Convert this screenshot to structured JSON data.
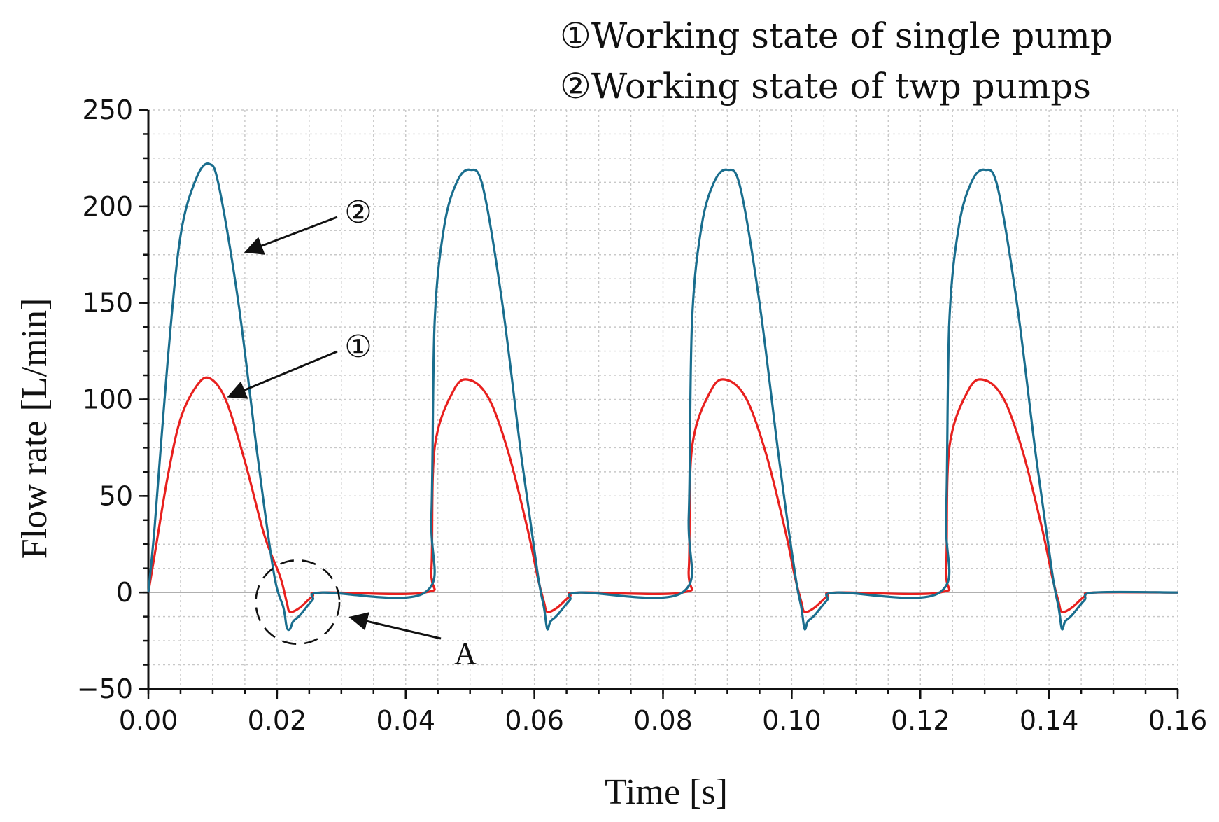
{
  "chart_data": {
    "type": "line",
    "title": "",
    "xlabel": "Time [s]",
    "ylabel": "Flow rate [L/min]",
    "xlim": [
      0.0,
      0.16
    ],
    "ylim": [
      -50,
      250
    ],
    "grid": true,
    "x_ticks": [
      "0.00",
      "0.02",
      "0.04",
      "0.06",
      "0.08",
      "0.10",
      "0.12",
      "0.14",
      "0.16"
    ],
    "y_ticks": [
      "250",
      "200",
      "150",
      "100",
      "50",
      "0",
      "−50"
    ],
    "x_tick_values": [
      0.0,
      0.02,
      0.04,
      0.06,
      0.08,
      0.1,
      0.12,
      0.14,
      0.16
    ],
    "y_tick_values": [
      250,
      200,
      150,
      100,
      50,
      0,
      -50
    ],
    "legend": [
      "①Working state of single pump",
      "②Working state of twp pumps"
    ],
    "series": [
      {
        "name": "① Working state of single pump",
        "color": "#e8201e",
        "x": [
          0.0,
          0.001,
          0.003,
          0.005,
          0.0075,
          0.0095,
          0.012,
          0.015,
          0.018,
          0.0205,
          0.0215,
          0.022,
          0.0235,
          0.0255,
          0.027,
          0.043,
          0.044,
          0.0445,
          0.0475,
          0.05,
          0.053,
          0.056,
          0.059,
          0.0605,
          0.0615,
          0.062,
          0.0635,
          0.0655,
          0.067,
          0.083,
          0.084,
          0.0845,
          0.0875,
          0.09,
          0.093,
          0.096,
          0.099,
          0.1005,
          0.1015,
          0.102,
          0.1035,
          0.1055,
          0.107,
          0.123,
          0.124,
          0.1245,
          0.1275,
          0.13,
          0.133,
          0.136,
          0.139,
          0.1405,
          0.1415,
          0.142,
          0.1435,
          0.1455,
          0.147,
          0.16
        ],
        "y": [
          0,
          20,
          60,
          90,
          107,
          111,
          100,
          68,
          30,
          8,
          -5,
          -10,
          -8,
          -2,
          0,
          0,
          12,
          75,
          105,
          110,
          100,
          72,
          32,
          8,
          -5,
          -10,
          -8,
          -2,
          0,
          0,
          12,
          75,
          105,
          110,
          100,
          72,
          32,
          8,
          -5,
          -10,
          -8,
          -2,
          0,
          0,
          12,
          75,
          105,
          110,
          100,
          72,
          32,
          8,
          -5,
          -10,
          -8,
          -2,
          0,
          0
        ]
      },
      {
        "name": "② Working state of twp pumps",
        "color": "#1a6e8e",
        "x": [
          0.0,
          0.001,
          0.003,
          0.005,
          0.0075,
          0.0095,
          0.011,
          0.014,
          0.017,
          0.0195,
          0.021,
          0.0215,
          0.022,
          0.0225,
          0.0235,
          0.0255,
          0.027,
          0.043,
          0.044,
          0.0445,
          0.046,
          0.048,
          0.05,
          0.052,
          0.055,
          0.058,
          0.0605,
          0.0615,
          0.062,
          0.0625,
          0.0635,
          0.0655,
          0.067,
          0.083,
          0.084,
          0.0845,
          0.086,
          0.088,
          0.09,
          0.092,
          0.095,
          0.098,
          0.1005,
          0.1015,
          0.102,
          0.1025,
          0.1035,
          0.1055,
          0.107,
          0.123,
          0.124,
          0.1245,
          0.126,
          0.128,
          0.13,
          0.132,
          0.135,
          0.138,
          0.1405,
          0.1415,
          0.142,
          0.1425,
          0.1435,
          0.1455,
          0.147,
          0.16
        ],
        "y": [
          0,
          35,
          120,
          185,
          215,
          222,
          210,
          150,
          70,
          10,
          -8,
          -18,
          -19,
          -15,
          -12,
          -4,
          0,
          0,
          40,
          140,
          190,
          213,
          219,
          210,
          150,
          70,
          10,
          -8,
          -19,
          -15,
          -12,
          -4,
          0,
          0,
          40,
          140,
          190,
          213,
          219,
          210,
          150,
          70,
          10,
          -8,
          -19,
          -15,
          -12,
          -4,
          0,
          0,
          40,
          140,
          190,
          213,
          219,
          210,
          150,
          70,
          10,
          -8,
          -19,
          -15,
          -12,
          -4,
          0,
          0
        ]
      }
    ],
    "annotations": [
      {
        "label": "②",
        "target_series": "② Working state of twp pumps",
        "target_x": 0.0145,
        "target_y": 175
      },
      {
        "label": "①",
        "target_series": "① Working state of single pump",
        "target_x": 0.0125,
        "target_y": 100
      },
      {
        "label": "A",
        "target_x": 0.031,
        "target_y": -10,
        "circle_center": [
          0.0232,
          -5
        ],
        "circle_radius_x": 0.0065
      }
    ]
  }
}
